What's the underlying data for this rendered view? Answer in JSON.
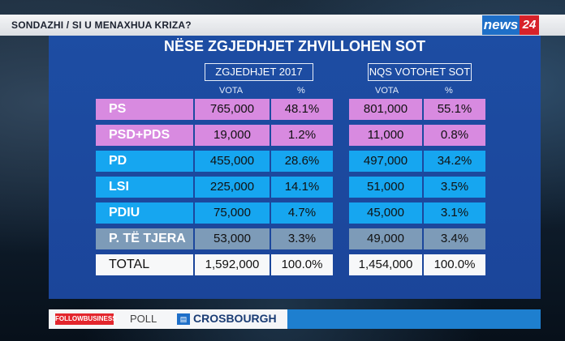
{
  "ticker": "SONDAZHI / SI U MENAXHUA KRIZA?",
  "logo": {
    "news": "news",
    "num": "24"
  },
  "panel": {
    "title": "NËSE ZGJEDHJET ZHVILLOHEN SOT",
    "left_header": "ZGJEDHJET 2017",
    "right_header": "NQS VOTOHET SOT",
    "col_votes": "VOTA",
    "col_pct": "%"
  },
  "colors": {
    "pink": "#d88ae0",
    "blue": "#16a6f0",
    "grey": "#7d9bb8",
    "panel": "#1d4da3"
  },
  "rows": [
    {
      "party": "PS",
      "v2017": "765,000",
      "p2017": "48.1%",
      "vnow": "801,000",
      "pnow": "55.1%",
      "color": "pink"
    },
    {
      "party": "PSD+PDS",
      "v2017": "19,000",
      "p2017": "1.2%",
      "vnow": "11,000",
      "pnow": "0.8%",
      "color": "pink"
    },
    {
      "party": "PD",
      "v2017": "455,000",
      "p2017": "28.6%",
      "vnow": "497,000",
      "pnow": "34.2%",
      "color": "blue"
    },
    {
      "party": "LSI",
      "v2017": "225,000",
      "p2017": "14.1%",
      "vnow": "51,000",
      "pnow": "3.5%",
      "color": "blue"
    },
    {
      "party": "PDIU",
      "v2017": "75,000",
      "p2017": "4.7%",
      "vnow": "45,000",
      "pnow": "3.1%",
      "color": "blue"
    },
    {
      "party": "P. TË TJERA",
      "v2017": "53,000",
      "p2017": "3.3%",
      "vnow": "49,000",
      "pnow": "3.4%",
      "color": "grey"
    },
    {
      "party": "TOTAL",
      "v2017": "1,592,000",
      "p2017": "100.0%",
      "vnow": "1,454,000",
      "pnow": "100.0%",
      "color": "white"
    }
  ],
  "sponsor": {
    "followbusiness": "FOLLOWBUSINESS",
    "poll": "POLL",
    "crosbourgh": "CROSBOURGH"
  }
}
